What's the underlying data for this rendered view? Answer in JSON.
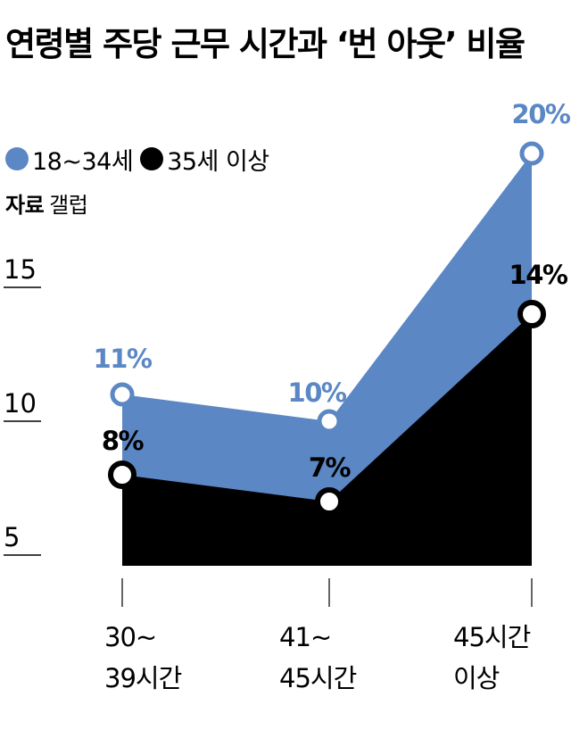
{
  "chart_data": {
    "type": "area",
    "title": "연령별 주당 근무 시간과 ‘번 아웃’ 비율",
    "source_label": "자료",
    "source": "갤럽",
    "categories": [
      "30~\n39시간",
      "41~\n45시간",
      "45시간\n이상"
    ],
    "y_ticks": [
      15,
      10,
      5
    ],
    "series": [
      {
        "name": "18~34세",
        "values": [
          11,
          10,
          20
        ],
        "labels": [
          "11%",
          "10%",
          "20%"
        ],
        "color": "#5b87c4"
      },
      {
        "name": "35세 이상",
        "values": [
          8,
          7,
          14
        ],
        "labels": [
          "8%",
          "7%",
          "14%"
        ],
        "color": "#000000"
      }
    ]
  }
}
